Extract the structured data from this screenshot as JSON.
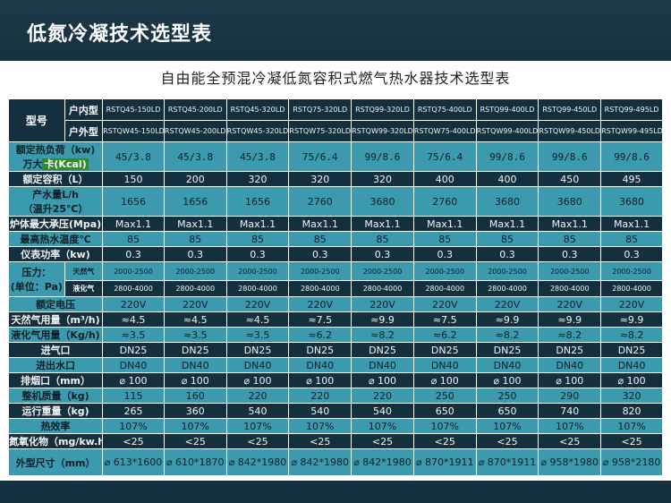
{
  "slide_title": "低氮冷凝技术选型表",
  "table_title": "自由能全预混冷凝低氮容积式燃气热水器技术选型表",
  "header": {
    "model_label": "型号",
    "indoor_label": "户内型",
    "outdoor_label": "户外型",
    "indoor_models": [
      "RSTQ45-150LD",
      "RSTQ45-200LD",
      "RSTQ45-320LD",
      "RSTQ75-320LD",
      "RSTQ99-320LD",
      "RSTQ75-400LD",
      "RSTQ99-400LD",
      "RSTQ99-450LD",
      "RSTQ99-495LD"
    ],
    "outdoor_models": [
      "RSTQW45-150LD",
      "RSTQW45-200LD",
      "RSTQW45-320LD",
      "RSTQW75-320LD",
      "RSTQW99-320LD",
      "RSTQW75-400LD",
      "RSTQW99-400LD",
      "RSTQW99-450LD",
      "RSTQW99-495LD"
    ]
  },
  "rows": [
    {
      "label1": "额定热负荷（kw)",
      "label2a": "万大",
      "label2b": "卡(Kcal)",
      "values": [
        "45/3.8",
        "45/3.8",
        "45/3.8",
        "75/6.4",
        "99/8.6",
        "75/6.4",
        "99/8.6",
        "99/8.6",
        "99/8.6"
      ]
    },
    {
      "label": "额定容积（L）",
      "values": [
        "150",
        "200",
        "320",
        "320",
        "320",
        "400",
        "400",
        "450",
        "495"
      ]
    },
    {
      "label1": "产水量L/h",
      "label2": "（温升25℃）",
      "values": [
        "1656",
        "1656",
        "1656",
        "2760",
        "3680",
        "2760",
        "3680",
        "3680",
        "3680"
      ]
    },
    {
      "label": "炉体最大承压(Mpa)",
      "values": [
        "Max1.1",
        "Max1.1",
        "Max1.1",
        "Max1.1",
        "Max1.1",
        "Max1.1",
        "Max1.1",
        "Max1.1",
        "Max1.1"
      ]
    },
    {
      "label": "最高热水温度℃",
      "values": [
        "85",
        "85",
        "85",
        "85",
        "85",
        "85",
        "85",
        "85",
        "85"
      ]
    },
    {
      "label": "仪表功率（kw)",
      "values": [
        "0.3",
        "0.3",
        "0.3",
        "0.3",
        "0.3",
        "0.3",
        "0.3",
        "0.3",
        "0.3"
      ]
    },
    {
      "label": "",
      "values": []
    }
  ],
  "pressure": {
    "label1": "压力：",
    "label2": "(单位：Pa)",
    "gas_natural": "天然气",
    "gas_lpg": "液化气",
    "natural_values": [
      "2000-2500",
      "2000-2500",
      "2000-2500",
      "2000-2500",
      "2000-2500",
      "2000-2500",
      "2000-2500",
      "2000-2500",
      "2000-2500"
    ],
    "lpg_values": [
      "2800-4000",
      "2800-4000",
      "2800-4000",
      "2800-4000",
      "2800-4000",
      "2800-4000",
      "2800-4000",
      "2800-4000",
      "2800-4000"
    ]
  },
  "rows2": [
    {
      "label": "额定电压",
      "values": [
        "220V",
        "220V",
        "220V",
        "220V",
        "220V",
        "220V",
        "220V",
        "220V",
        "220V"
      ]
    },
    {
      "label": "天然气用量（m³/h)",
      "values": [
        "≈4.5",
        "≈4.5",
        "≈4.5",
        "≈7.5",
        "≈9.9",
        "≈7.5",
        "≈9.9",
        "≈9.9",
        "≈9.9"
      ]
    },
    {
      "label": "液化气用量（Kg/h)",
      "values": [
        "≈3.5",
        "≈3.5",
        "≈3.5",
        "≈6.2",
        "≈8.2",
        "≈6.2",
        "≈8.2",
        "≈8.2",
        "≈8.2"
      ]
    },
    {
      "label": "进气口",
      "values": [
        "DN25",
        "DN25",
        "DN25",
        "DN25",
        "DN25",
        "DN25",
        "DN25",
        "DN25",
        "DN25"
      ]
    },
    {
      "label": "进出水口",
      "values": [
        "DN40",
        "DN40",
        "DN40",
        "DN40",
        "DN40",
        "DN40",
        "DN40",
        "DN40",
        "DN40"
      ]
    },
    {
      "label": "排烟口（mm）",
      "values": [
        "⌀ 100",
        "⌀ 100",
        "⌀ 100",
        "⌀ 100",
        "⌀ 100",
        "⌀ 100",
        "⌀ 100",
        "⌀ 100",
        "⌀ 100"
      ]
    },
    {
      "label": "整机质量（kg)",
      "values": [
        "115",
        "160",
        "220",
        "220",
        "220",
        "250",
        "250",
        "290",
        "320"
      ]
    },
    {
      "label": "运行重量（kg)",
      "values": [
        "265",
        "360",
        "540",
        "540",
        "540",
        "650",
        "650",
        "740",
        "820"
      ]
    },
    {
      "label": "热效率",
      "values": [
        "107%",
        "107%",
        "107%",
        "107%",
        "107%",
        "107%",
        "107%",
        "107%",
        "107%"
      ]
    },
    {
      "label": "氮氧化物（mg/kw.h)",
      "values": [
        "<25",
        "<25",
        "<25",
        "<25",
        "<25",
        "<25",
        "<25",
        "<25",
        "<25"
      ]
    },
    {
      "label": "外型尺寸（mm）",
      "values": [
        "⌀ 613*1600",
        "⌀ 610*1870",
        "⌀ 842*1980",
        "⌀ 842*1980",
        "⌀ 842*1980",
        "⌀ 870*1911",
        "⌀ 870*1911",
        "⌀ 958*1980",
        "⌀ 958*2180"
      ]
    }
  ]
}
